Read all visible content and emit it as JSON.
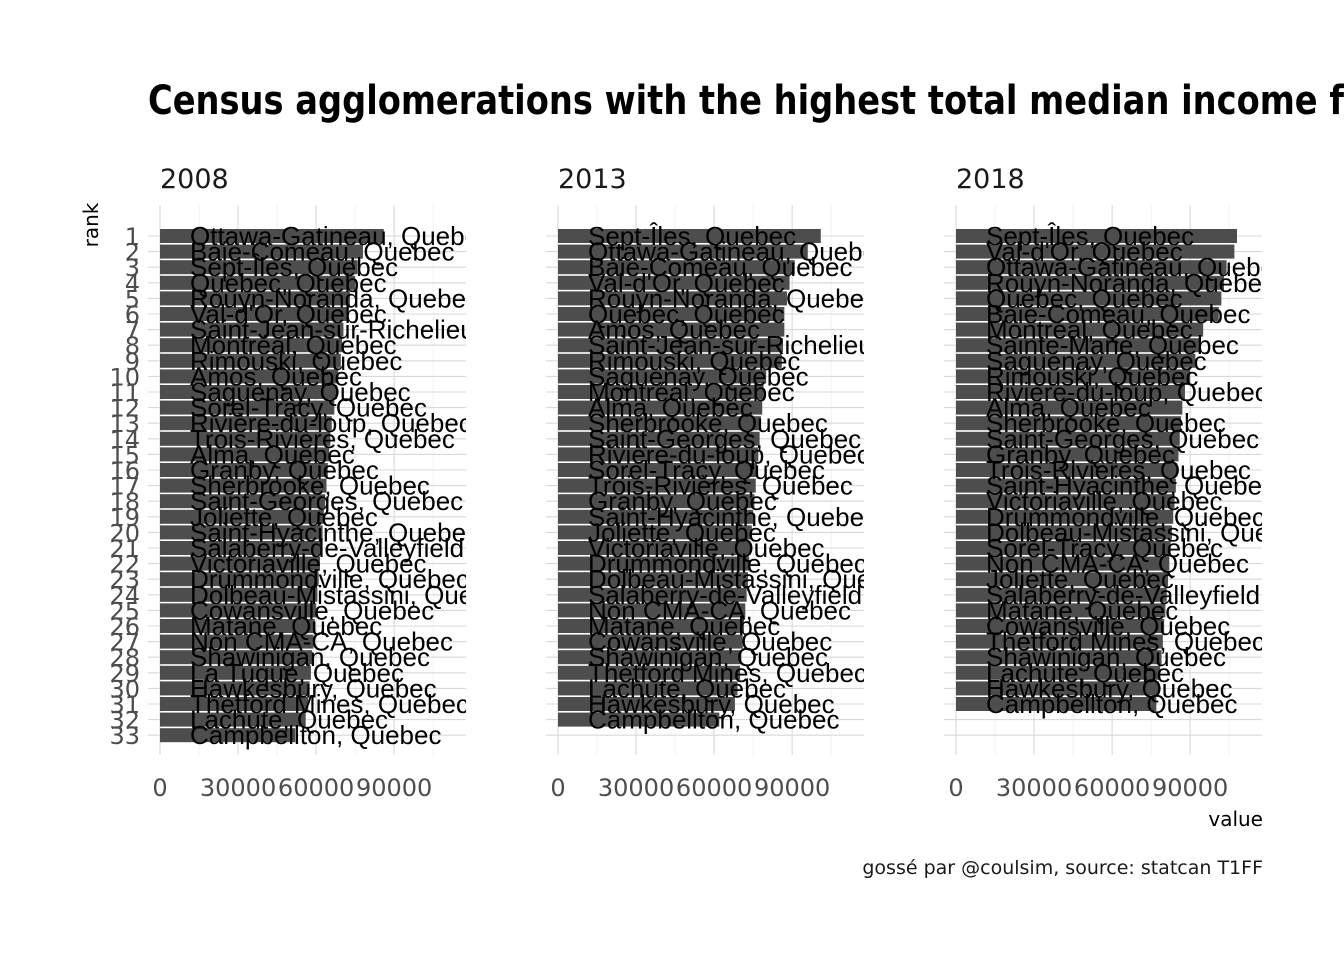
{
  "chart_data": {
    "type": "bar",
    "orientation": "horizontal",
    "title": "Census agglomerations with the highest total median income f",
    "caption": "gossé par @coulsim, source: statcan T1FF",
    "xlabel": "value",
    "ylabel": "rank",
    "xlim": [
      0,
      113000
    ],
    "xticks": [
      0,
      30000,
      60000,
      90000
    ],
    "grid": true,
    "bar_color": "#4d4d4d",
    "panels": [
      {
        "year": "2008",
        "rank_labels": [
          "1",
          "2",
          "3",
          "4",
          "5",
          "6",
          "7",
          "8",
          "9",
          "10",
          "11",
          "12",
          "13",
          "14",
          "15",
          "16",
          "17",
          "18",
          "19",
          "20",
          "21",
          "22",
          "23",
          "24",
          "25",
          "26",
          "27",
          "28",
          "29",
          "30",
          "31",
          "32",
          "33"
        ],
        "names": [
          "Ottawa-Gatineau, Quebec",
          "Baie-Comeau, Quebec",
          "Sept-Îles, Quebec",
          "Québec, Quebec",
          "Rouyn-Noranda, Quebec",
          "Val-d'Or, Quebec",
          "Saint-Jean-sur-Richelieu, Quebec",
          "Montréal, Quebec",
          "Rimouski, Quebec",
          "Amos, Quebec",
          "Saguenay, Quebec",
          "Sorel-Tracy, Quebec",
          "Rivière-du-loup, Quebec",
          "Trois-Rivières, Quebec",
          "Alma, Quebec",
          "Granby, Quebec",
          "Sherbrooke, Quebec",
          "Saint-Georges, Quebec",
          "Joliette, Quebec",
          "Saint-Hyacinthe, Quebec",
          "Salaberry-de-Valleyfield, Quebec",
          "Victoriaville, Quebec",
          "Drummondville, Quebec",
          "Dolbeau-Mistassini, Quebec",
          "Cowansville, Quebec",
          "Matane, Quebec",
          "Non CMA-CA, Quebec",
          "Shawinigan, Quebec",
          "La Tuque, Quebec",
          "Hawkesbury, Quebec",
          "Thetford Mines, Quebec",
          "Lachute, Quebec",
          "Campbellton, Quebec"
        ],
        "values": [
          86000,
          78000,
          76000,
          75000,
          73000,
          72000,
          70500,
          70000,
          69500,
          68500,
          68000,
          67000,
          66000,
          65500,
          65000,
          64500,
          64000,
          63500,
          63000,
          62500,
          62000,
          61500,
          61000,
          60500,
          60000,
          59500,
          59000,
          58500,
          58000,
          57500,
          57000,
          56000,
          52000
        ]
      },
      {
        "year": "2013",
        "rank_labels": [],
        "names": [
          "Sept-Îles, Quebec",
          "Ottawa-Gatineau, Quebec",
          "Baie-Comeau, Quebec",
          "Val-d'Or, Quebec",
          "Rouyn-Noranda, Quebec",
          "Québec, Quebec",
          "Amos, Quebec",
          "Saint-Jean-sur-Richelieu, Quebec",
          "Rimouski, Quebec",
          "Saguenay, Quebec",
          "Montréal, Quebec",
          "Alma, Quebec",
          "Sherbrooke, Quebec",
          "Saint-Georges, Quebec",
          "Rivière-du-loup, Quebec",
          "Sorel-Tracy, Quebec",
          "Trois-Rivières, Quebec",
          "Granby, Quebec",
          "Saint-Hyacinthe, Quebec",
          "Joliette, Quebec",
          "Victoriaville, Quebec",
          "Drummondville, Quebec",
          "Dolbeau-Mistassini, Quebec",
          "Salaberry-de-Valleyfield, Quebec",
          "Non CMA-CA, Quebec",
          "Matane, Quebec",
          "Cowansville, Quebec",
          "Shawinigan, Quebec",
          "Thetford Mines, Quebec",
          "Lachute, Quebec",
          "Hawkesbury, Quebec",
          "Campbellton, Quebec"
        ],
        "values": [
          101000,
          96000,
          91000,
          89000,
          88000,
          87000,
          87000,
          86500,
          86000,
          80000,
          79000,
          78500,
          78000,
          77500,
          77000,
          76500,
          76000,
          75500,
          75000,
          74500,
          74000,
          73500,
          73000,
          72500,
          72000,
          71500,
          71000,
          70500,
          70000,
          69000,
          68000,
          62000
        ]
      },
      {
        "year": "2018",
        "rank_labels": [],
        "names": [
          "Sept-Îles, Quebec",
          "Val-d'Or, Quebec",
          "Ottawa-Gatineau, Quebec",
          "Rouyn-Noranda, Quebec",
          "Québec, Quebec",
          "Baie-Comeau, Quebec",
          "Montréal, Quebec",
          "Sainte-Marie, Quebec",
          "Saguenay, Quebec",
          "Rimouski, Quebec",
          "Rivière-du-loup, Quebec",
          "Alma, Quebec",
          "Sherbrooke, Quebec",
          "Saint-Georges, Quebec",
          "Granby, Quebec",
          "Trois-Rivières, Quebec",
          "Saint-Hyacinthe, Quebec",
          "Victoriaville, Quebec",
          "Drummondville, Quebec",
          "Dolbeau-Mistassini, Quebec",
          "Sorel-Tracy, Quebec",
          "Non CMA-CA, Quebec",
          "Joliette, Quebec",
          "Salaberry-de-Valleyfield, Quebec",
          "Matane, Quebec",
          "Cowansville, Quebec",
          "Thetford Mines, Quebec",
          "Shawinigan, Quebec",
          "Lachute, Quebec",
          "Hawkesbury, Quebec",
          "Campbellton, Quebec"
        ],
        "values": [
          108000,
          107000,
          104000,
          103000,
          102000,
          101000,
          95000,
          94000,
          92000,
          90000,
          88000,
          87000,
          86500,
          86000,
          85500,
          85000,
          84500,
          84000,
          83500,
          83000,
          82500,
          82000,
          81500,
          81000,
          80500,
          80000,
          79500,
          79000,
          78500,
          78000,
          77000
        ]
      }
    ]
  }
}
